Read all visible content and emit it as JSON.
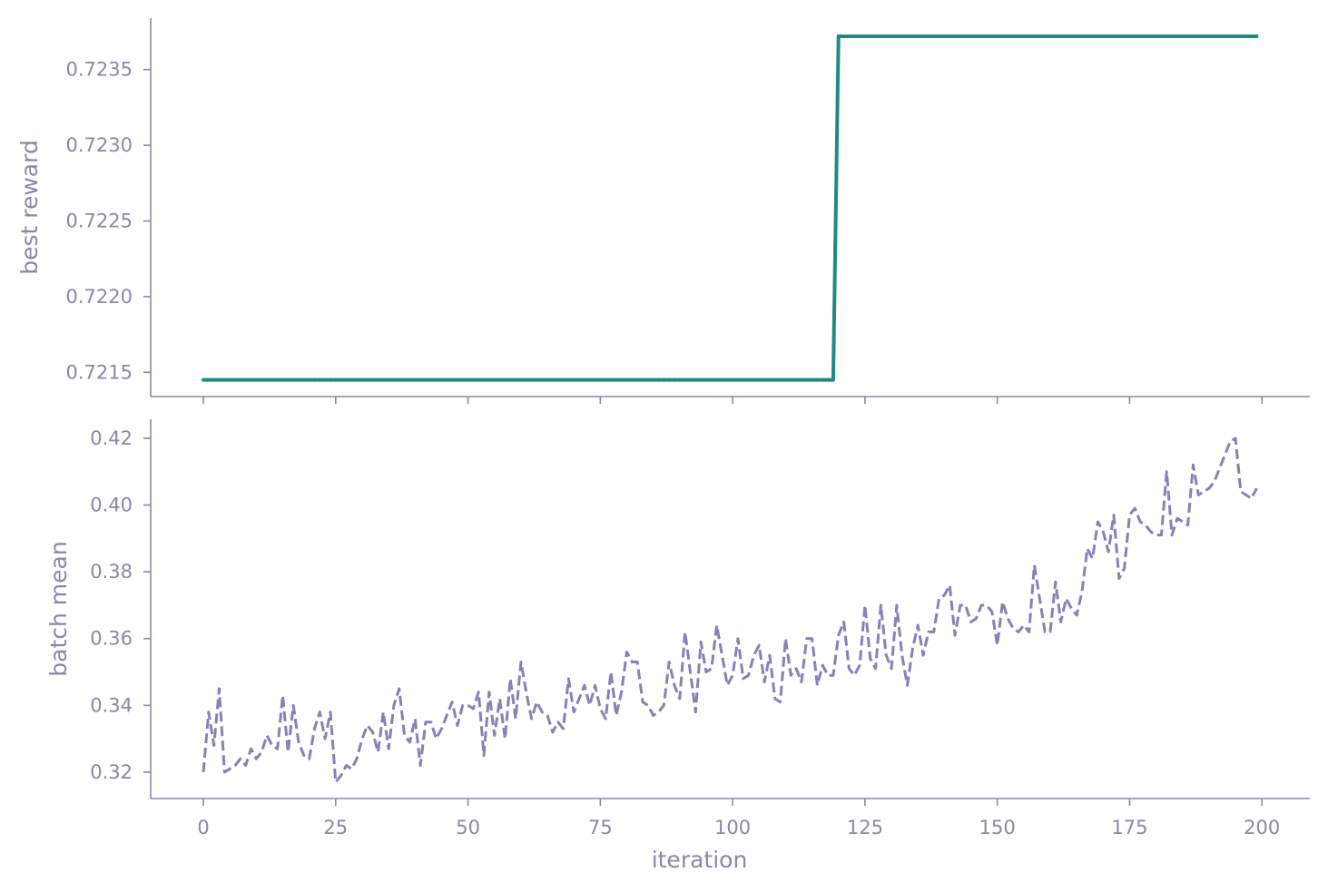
{
  "chart_data": [
    {
      "type": "line",
      "ylabel": "best reward",
      "x": [
        0,
        1,
        2,
        3,
        4,
        5,
        6,
        7,
        8,
        9,
        10,
        11,
        12,
        13,
        14,
        15,
        16,
        17,
        18,
        19,
        20,
        21,
        22,
        23,
        24,
        25,
        26,
        27,
        28,
        29,
        30,
        31,
        32,
        33,
        34,
        35,
        36,
        37,
        38,
        39,
        40,
        41,
        42,
        43,
        44,
        45,
        46,
        47,
        48,
        49,
        50,
        51,
        52,
        53,
        54,
        55,
        56,
        57,
        58,
        59,
        60,
        61,
        62,
        63,
        64,
        65,
        66,
        67,
        68,
        69,
        70,
        71,
        72,
        73,
        74,
        75,
        76,
        77,
        78,
        79,
        80,
        81,
        82,
        83,
        84,
        85,
        86,
        87,
        88,
        89,
        90,
        91,
        92,
        93,
        94,
        95,
        96,
        97,
        98,
        99,
        100,
        101,
        102,
        103,
        104,
        105,
        106,
        107,
        108,
        109,
        110,
        111,
        112,
        113,
        114,
        115,
        116,
        117,
        118,
        119,
        120,
        121,
        122,
        123,
        124,
        125,
        126,
        127,
        128,
        129,
        130,
        131,
        132,
        133,
        134,
        135,
        136,
        137,
        138,
        139,
        140,
        141,
        142,
        143,
        144,
        145,
        146,
        147,
        148,
        149,
        150,
        151,
        152,
        153,
        154,
        155,
        156,
        157,
        158,
        159,
        160,
        161,
        162,
        163,
        164,
        165,
        166,
        167,
        168,
        169,
        170,
        171,
        172,
        173,
        174,
        175,
        176,
        177,
        178,
        179,
        180,
        181,
        182,
        183,
        184,
        185,
        186,
        187,
        188,
        189,
        190,
        191,
        192,
        193,
        194,
        195,
        196,
        197,
        198,
        199
      ],
      "series": [
        {
          "color": "#1f8a84",
          "marker": true,
          "linestyle": "solid",
          "values": [
            0.72145,
            0.72145,
            0.72145,
            0.72145,
            0.72145,
            0.72145,
            0.72145,
            0.72145,
            0.72145,
            0.72145,
            0.72145,
            0.72145,
            0.72145,
            0.72145,
            0.72145,
            0.72145,
            0.72145,
            0.72145,
            0.72145,
            0.72145,
            0.72145,
            0.72145,
            0.72145,
            0.72145,
            0.72145,
            0.72145,
            0.72145,
            0.72145,
            0.72145,
            0.72145,
            0.72145,
            0.72145,
            0.72145,
            0.72145,
            0.72145,
            0.72145,
            0.72145,
            0.72145,
            0.72145,
            0.72145,
            0.72145,
            0.72145,
            0.72145,
            0.72145,
            0.72145,
            0.72145,
            0.72145,
            0.72145,
            0.72145,
            0.72145,
            0.72145,
            0.72145,
            0.72145,
            0.72145,
            0.72145,
            0.72145,
            0.72145,
            0.72145,
            0.72145,
            0.72145,
            0.72145,
            0.72145,
            0.72145,
            0.72145,
            0.72145,
            0.72145,
            0.72145,
            0.72145,
            0.72145,
            0.72145,
            0.72145,
            0.72145,
            0.72145,
            0.72145,
            0.72145,
            0.72145,
            0.72145,
            0.72145,
            0.72145,
            0.72145,
            0.72145,
            0.72145,
            0.72145,
            0.72145,
            0.72145,
            0.72145,
            0.72145,
            0.72145,
            0.72145,
            0.72145,
            0.72145,
            0.72145,
            0.72145,
            0.72145,
            0.72145,
            0.72145,
            0.72145,
            0.72145,
            0.72145,
            0.72145,
            0.72145,
            0.72145,
            0.72145,
            0.72145,
            0.72145,
            0.72145,
            0.72145,
            0.72145,
            0.72145,
            0.72145,
            0.72145,
            0.72145,
            0.72145,
            0.72145,
            0.72145,
            0.72145,
            0.72145,
            0.72145,
            0.72145,
            0.72145,
            0.72372,
            0.72372,
            0.72372,
            0.72372,
            0.72372,
            0.72372,
            0.72372,
            0.72372,
            0.72372,
            0.72372,
            0.72372,
            0.72372,
            0.72372,
            0.72372,
            0.72372,
            0.72372,
            0.72372,
            0.72372,
            0.72372,
            0.72372,
            0.72372,
            0.72372,
            0.72372,
            0.72372,
            0.72372,
            0.72372,
            0.72372,
            0.72372,
            0.72372,
            0.72372,
            0.72372,
            0.72372,
            0.72372,
            0.72372,
            0.72372,
            0.72372,
            0.72372,
            0.72372,
            0.72372,
            0.72372,
            0.72372,
            0.72372,
            0.72372,
            0.72372,
            0.72372,
            0.72372,
            0.72372,
            0.72372,
            0.72372,
            0.72372,
            0.72372,
            0.72372,
            0.72372,
            0.72372,
            0.72372,
            0.72372,
            0.72372,
            0.72372,
            0.72372,
            0.72372,
            0.72372,
            0.72372,
            0.72372,
            0.72372,
            0.72372,
            0.72372,
            0.72372,
            0.72372,
            0.72372,
            0.72372,
            0.72372,
            0.72372,
            0.72372,
            0.72372,
            0.72372,
            0.72372,
            0.72372,
            0.72372,
            0.72372,
            0.72372
          ]
        }
      ],
      "xlim": [
        -9.95,
        209.05
      ],
      "xticks": [
        0,
        25,
        50,
        75,
        100,
        125,
        150,
        175,
        200
      ],
      "show_xticklabels": false,
      "ylim": [
        0.72134,
        0.72384
      ],
      "yticks": [
        0.7215,
        {
          "value": 0.722,
          "label": "0.7220"
        },
        0.7225,
        {
          "value": 0.723,
          "label": "0.7230"
        },
        0.7235
      ]
    },
    {
      "type": "line",
      "ylabel": "batch mean",
      "xlabel": "iteration",
      "x": [
        0,
        1,
        2,
        3,
        4,
        5,
        6,
        7,
        8,
        9,
        10,
        11,
        12,
        13,
        14,
        15,
        16,
        17,
        18,
        19,
        20,
        21,
        22,
        23,
        24,
        25,
        26,
        27,
        28,
        29,
        30,
        31,
        32,
        33,
        34,
        35,
        36,
        37,
        38,
        39,
        40,
        41,
        42,
        43,
        44,
        45,
        46,
        47,
        48,
        49,
        50,
        51,
        52,
        53,
        54,
        55,
        56,
        57,
        58,
        59,
        60,
        61,
        62,
        63,
        64,
        65,
        66,
        67,
        68,
        69,
        70,
        71,
        72,
        73,
        74,
        75,
        76,
        77,
        78,
        79,
        80,
        81,
        82,
        83,
        84,
        85,
        86,
        87,
        88,
        89,
        90,
        91,
        92,
        93,
        94,
        95,
        96,
        97,
        98,
        99,
        100,
        101,
        102,
        103,
        104,
        105,
        106,
        107,
        108,
        109,
        110,
        111,
        112,
        113,
        114,
        115,
        116,
        117,
        118,
        119,
        120,
        121,
        122,
        123,
        124,
        125,
        126,
        127,
        128,
        129,
        130,
        131,
        132,
        133,
        134,
        135,
        136,
        137,
        138,
        139,
        140,
        141,
        142,
        143,
        144,
        145,
        146,
        147,
        148,
        149,
        150,
        151,
        152,
        153,
        154,
        155,
        156,
        157,
        158,
        159,
        160,
        161,
        162,
        163,
        164,
        165,
        166,
        167,
        168,
        169,
        170,
        171,
        172,
        173,
        174,
        175,
        176,
        177,
        178,
        179,
        180,
        181,
        182,
        183,
        184,
        185,
        186,
        187,
        188,
        189,
        190,
        191,
        192,
        193,
        194,
        195,
        196,
        197,
        198,
        199
      ],
      "series": [
        {
          "color": "#8a7fb8",
          "marker": false,
          "linestyle": "dashed",
          "values": [
            0.32,
            0.338,
            0.328,
            0.345,
            0.32,
            0.321,
            0.322,
            0.324,
            0.322,
            0.327,
            0.324,
            0.326,
            0.331,
            0.328,
            0.327,
            0.343,
            0.326,
            0.34,
            0.329,
            0.325,
            0.324,
            0.333,
            0.338,
            0.33,
            0.338,
            0.317,
            0.319,
            0.322,
            0.321,
            0.324,
            0.33,
            0.334,
            0.332,
            0.326,
            0.338,
            0.327,
            0.34,
            0.345,
            0.331,
            0.329,
            0.336,
            0.322,
            0.335,
            0.335,
            0.33,
            0.333,
            0.337,
            0.341,
            0.334,
            0.34,
            0.34,
            0.339,
            0.344,
            0.325,
            0.344,
            0.331,
            0.342,
            0.33,
            0.348,
            0.336,
            0.353,
            0.344,
            0.336,
            0.341,
            0.338,
            0.337,
            0.332,
            0.335,
            0.333,
            0.348,
            0.338,
            0.342,
            0.346,
            0.34,
            0.346,
            0.339,
            0.336,
            0.35,
            0.337,
            0.344,
            0.356,
            0.353,
            0.353,
            0.341,
            0.34,
            0.337,
            0.338,
            0.34,
            0.353,
            0.346,
            0.342,
            0.362,
            0.35,
            0.338,
            0.359,
            0.35,
            0.351,
            0.364,
            0.355,
            0.346,
            0.349,
            0.36,
            0.348,
            0.349,
            0.355,
            0.358,
            0.347,
            0.355,
            0.342,
            0.341,
            0.36,
            0.349,
            0.351,
            0.347,
            0.36,
            0.36,
            0.346,
            0.352,
            0.349,
            0.349,
            0.361,
            0.365,
            0.351,
            0.349,
            0.352,
            0.37,
            0.354,
            0.351,
            0.37,
            0.355,
            0.351,
            0.37,
            0.355,
            0.346,
            0.357,
            0.364,
            0.355,
            0.362,
            0.362,
            0.372,
            0.373,
            0.376,
            0.361,
            0.37,
            0.37,
            0.365,
            0.366,
            0.37,
            0.37,
            0.368,
            0.358,
            0.371,
            0.366,
            0.363,
            0.362,
            0.364,
            0.362,
            0.382,
            0.372,
            0.362,
            0.362,
            0.377,
            0.365,
            0.372,
            0.369,
            0.367,
            0.374,
            0.387,
            0.384,
            0.395,
            0.392,
            0.386,
            0.397,
            0.378,
            0.381,
            0.397,
            0.399,
            0.395,
            0.394,
            0.392,
            0.391,
            0.391,
            0.41,
            0.391,
            0.396,
            0.395,
            0.394,
            0.412,
            0.403,
            0.404,
            0.405,
            0.407,
            0.411,
            0.415,
            0.419,
            0.42,
            0.404,
            0.403,
            0.402,
            0.405
          ]
        }
      ],
      "xlim": [
        -9.95,
        209.05
      ],
      "xticks": [
        0,
        25,
        50,
        75,
        100,
        125,
        150,
        175,
        200
      ],
      "show_xticklabels": true,
      "ylim": [
        0.3121,
        0.4257
      ],
      "yticks": [
        0.32,
        0.34,
        0.36,
        0.38,
        {
          "value": 0.4,
          "label": "0.40"
        },
        0.42
      ]
    }
  ]
}
